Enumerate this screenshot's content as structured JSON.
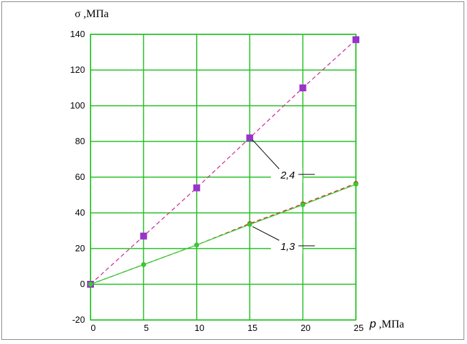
{
  "chart_data": {
    "type": "line",
    "title": "",
    "ylabel": "σ ,МПа",
    "xlabel_symbol": "p",
    "xlabel_unit": " ,МПа",
    "xlim": [
      0,
      25
    ],
    "ylim": [
      -20,
      140
    ],
    "x_ticks": [
      0,
      5,
      10,
      15,
      20,
      25
    ],
    "y_ticks": [
      -20,
      0,
      20,
      40,
      60,
      80,
      100,
      120,
      140
    ],
    "grid": true,
    "grid_color": "#22c022",
    "x": [
      0,
      5,
      10,
      15,
      20,
      25
    ],
    "series": [
      {
        "id": "s24",
        "line_color": "#cc3399",
        "line_style": "dashed",
        "marker": "square",
        "marker_color": "#9933cc",
        "values": [
          0,
          27,
          54,
          82,
          110,
          137
        ]
      },
      {
        "id": "s13a",
        "line_color": "#dd2222",
        "line_style": "dashed",
        "marker": "circle",
        "marker_color": "#dd2222",
        "values": [
          0,
          11,
          22,
          34,
          45,
          56.5
        ]
      },
      {
        "id": "s13b",
        "line_color": "#33cc33",
        "line_style": "solid",
        "marker": "circle",
        "marker_color": "#33cc33",
        "values": [
          0,
          11,
          22,
          33.5,
          44.5,
          56
        ]
      }
    ],
    "annotations": [
      {
        "text": "2,4",
        "point_x": 15,
        "point_y": 82,
        "label_x": 17.9,
        "label_y": 60
      },
      {
        "text": "1,3",
        "point_x": 15,
        "point_y": 33.5,
        "label_x": 17.9,
        "label_y": 20
      }
    ]
  }
}
